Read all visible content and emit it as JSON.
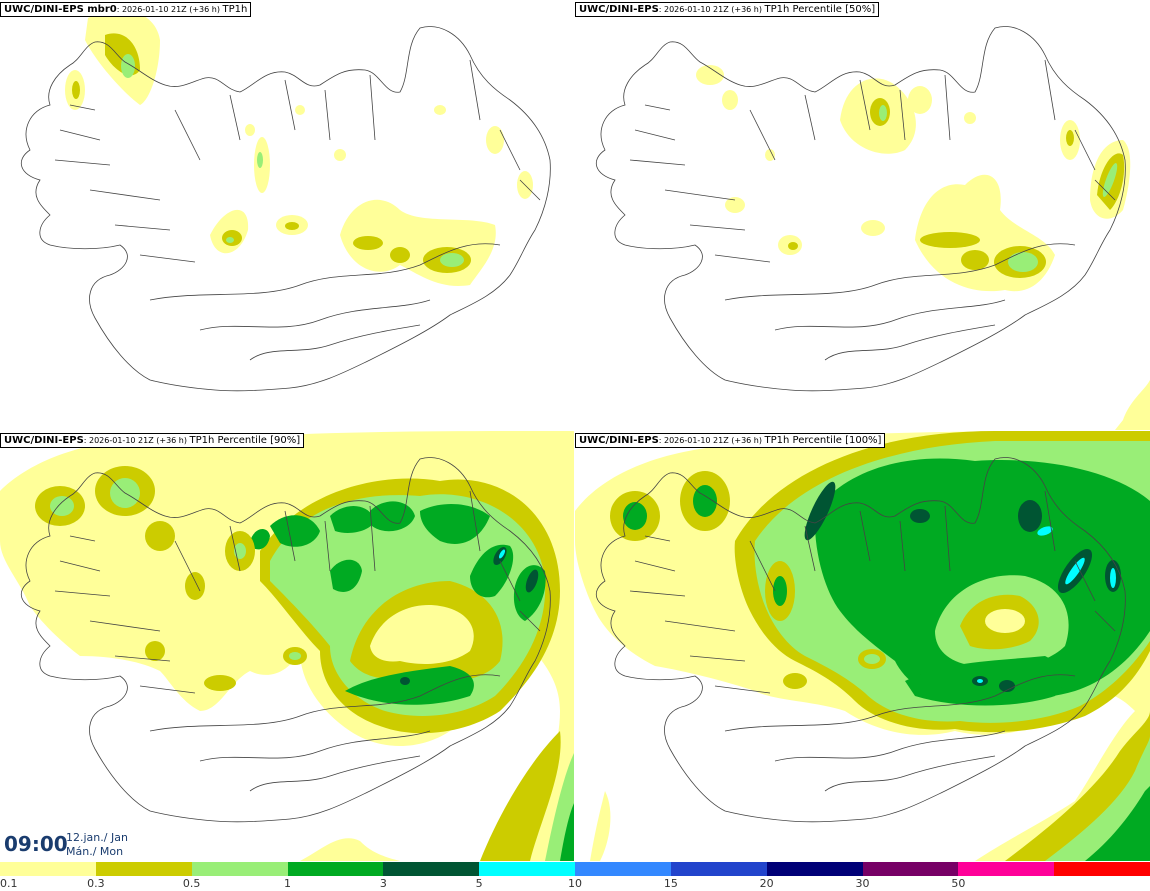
{
  "panels": [
    {
      "model": "UWC/DINI-EPS mbr0",
      "info": ": 2026-01-10 21Z (+36 h) ",
      "field": "TP1h"
    },
    {
      "model": "UWC/DINI-EPS",
      "info": ": 2026-01-10 21Z (+36 h) ",
      "field": "TP1h Percentile [50%]"
    },
    {
      "model": "UWC/DINI-EPS",
      "info": ": 2026-01-10 21Z (+36 h) ",
      "field": "TP1h Percentile [90%]"
    },
    {
      "model": "UWC/DINI-EPS",
      "info": ": 2026-01-10 21Z (+36 h) ",
      "field": "TP1h Percentile [100%]"
    }
  ],
  "valid_time": {
    "time": "09:00",
    "date_line1": "12.jan./ Jan",
    "date_line2": "Mán./ Mon"
  },
  "legend": {
    "labels": [
      "0.1",
      "0.3",
      "0.5",
      "1",
      "3",
      "5",
      "10",
      "15",
      "20",
      "30",
      "50"
    ],
    "colors": [
      "#ffff99",
      "#cccc00",
      "#99ee77",
      "#00aa22",
      "#005533",
      "#00ffff",
      "#3388ff",
      "#2244cc",
      "#000077",
      "#770066",
      "#ff0099",
      "#ff0000"
    ]
  },
  "colors": {
    "level1": "#ffff99",
    "level2": "#cccc00",
    "level3": "#99ee77",
    "level4": "#00aa22",
    "level5": "#005533",
    "level6": "#00ffff"
  }
}
